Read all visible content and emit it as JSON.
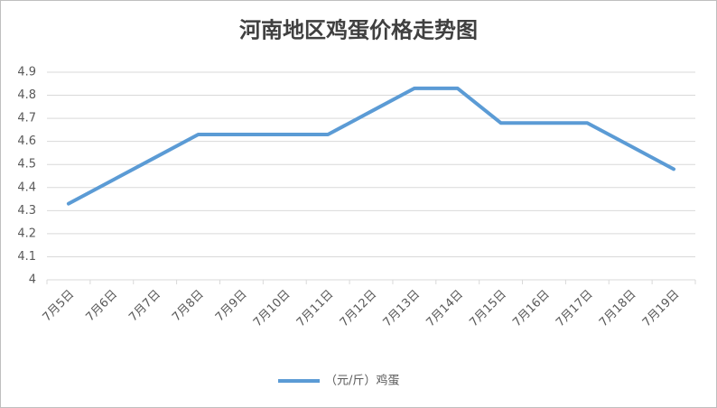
{
  "chart_data": {
    "type": "line",
    "title": "河南地区鸡蛋价格走势图",
    "categories": [
      "7月5日",
      "7月6日",
      "7月7日",
      "7月8日",
      "7月9日",
      "7月10日",
      "7月11日",
      "7月12日",
      "7月13日",
      "7月14日",
      "7月15日",
      "7月16日",
      "7月17日",
      "7月18日",
      "7月19日"
    ],
    "series": [
      {
        "name": "（元/斤）鸡蛋",
        "color": "#5b9bd5",
        "values": [
          4.33,
          4.43,
          4.53,
          4.63,
          4.63,
          4.63,
          4.63,
          4.73,
          4.83,
          4.83,
          4.68,
          4.68,
          4.68,
          4.58,
          4.48
        ]
      }
    ],
    "ylim": [
      4,
      4.9
    ],
    "yticks": [
      4,
      4.1,
      4.2,
      4.3,
      4.4,
      4.5,
      4.6,
      4.7,
      4.8,
      4.9
    ],
    "grid": true,
    "legend": "bottom"
  }
}
